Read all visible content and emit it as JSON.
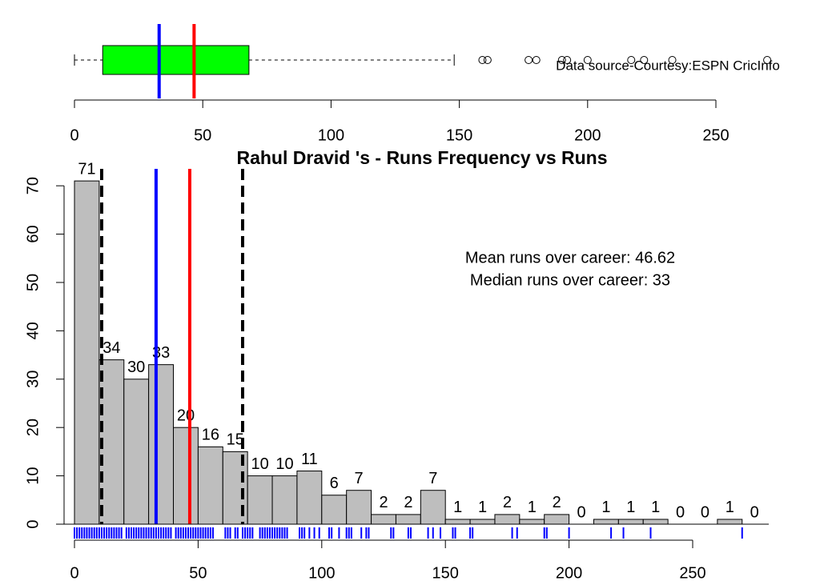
{
  "chart_data": [
    {
      "type": "box",
      "min": 0,
      "q1": 11,
      "median": 33,
      "q3": 68,
      "max": 148,
      "mean": 46.62,
      "outliers": [
        159,
        161,
        177,
        180,
        190,
        192,
        200,
        217,
        222,
        233,
        270
      ],
      "xlim": [
        0,
        250
      ],
      "xticks": [
        0,
        50,
        100,
        150,
        200,
        250
      ],
      "box_color": "#00ff00",
      "median_color": "#0000ff",
      "mean_color": "#ff0000",
      "annotation": "Data source-Courtesy:ESPN CricInfo"
    },
    {
      "type": "histogram",
      "title": "Rahul Dravid 's  - Runs Frequency vs Runs",
      "bins": [
        0,
        10,
        20,
        30,
        40,
        50,
        60,
        70,
        80,
        90,
        100,
        110,
        120,
        130,
        140,
        150,
        160,
        170,
        180,
        190,
        200,
        210,
        220,
        230,
        240,
        250,
        260,
        270,
        280
      ],
      "counts": [
        71,
        34,
        30,
        33,
        20,
        16,
        15,
        10,
        10,
        11,
        6,
        7,
        2,
        2,
        7,
        1,
        1,
        2,
        1,
        2,
        0,
        1,
        1,
        1,
        0,
        0,
        1,
        0
      ],
      "color": "#bebebe",
      "xlim": [
        0,
        250
      ],
      "xticks": [
        0,
        50,
        100,
        150,
        200,
        250
      ],
      "ylim": [
        0,
        73.5
      ],
      "yticks": [
        0,
        10,
        20,
        30,
        40,
        50,
        60,
        70
      ],
      "rug": [
        0,
        1,
        2,
        3,
        4,
        5,
        6,
        7,
        8,
        9,
        10,
        11,
        12,
        13,
        14,
        15,
        16,
        17,
        18,
        19,
        21,
        22,
        23,
        24,
        25,
        26,
        27,
        28,
        29,
        30,
        31,
        32,
        33,
        34,
        35,
        36,
        37,
        38,
        39,
        41,
        42,
        43,
        44,
        45,
        46,
        47,
        48,
        49,
        50,
        51,
        52,
        53,
        54,
        55,
        56,
        61,
        62,
        63,
        65,
        66,
        68,
        69,
        70,
        71,
        72,
        75,
        76,
        77,
        78,
        79,
        80,
        81,
        82,
        83,
        84,
        85,
        86,
        91,
        92,
        93,
        95,
        97,
        99,
        103,
        104,
        107,
        110,
        111,
        112,
        116,
        118,
        119,
        128,
        129,
        135,
        136,
        143,
        145,
        148,
        153,
        154,
        160,
        161,
        177,
        179,
        190,
        191,
        200,
        217,
        222,
        233,
        270
      ],
      "rug_color": "#0000ff",
      "annotations": [
        "Mean runs over career: 46.62",
        "Median runs over career: 33"
      ],
      "annotation_color": "#a52a2a"
    }
  ]
}
